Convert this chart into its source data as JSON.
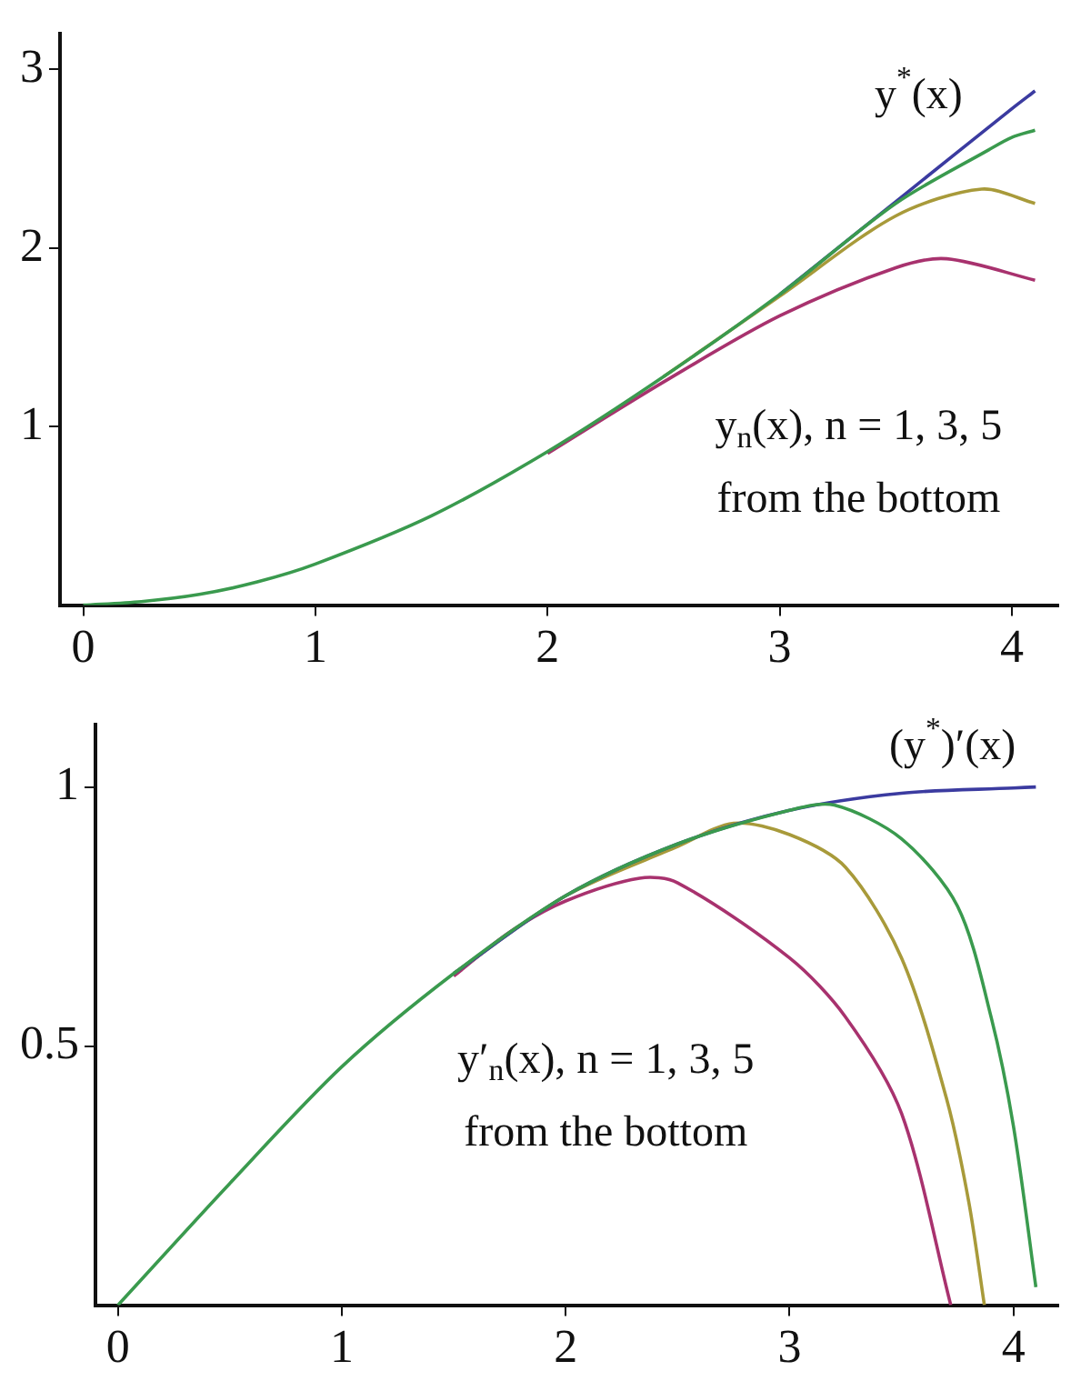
{
  "chart_data": [
    {
      "type": "line",
      "xlim": [
        -0.1,
        4.2
      ],
      "xticks": [
        0,
        1,
        2,
        3,
        4
      ],
      "ylim": [
        0,
        3.2
      ],
      "yticks": [
        1,
        2,
        3
      ],
      "series": [
        {
          "color": "#3a9a4e",
          "x": [
            0,
            0.25,
            0.5,
            0.75,
            1,
            1.5,
            2,
            2.5,
            3,
            3.5,
            3.9,
            4,
            4.1
          ],
          "values": [
            0,
            0.02,
            0.06,
            0.13,
            0.23,
            0.5,
            0.86,
            1.28,
            1.74,
            2.25,
            2.55,
            2.62,
            2.66
          ]
        },
        {
          "color": "#3b3ba0",
          "x": [
            3,
            3.5,
            4,
            4.1
          ],
          "values": [
            1.74,
            2.26,
            2.78,
            2.88
          ]
        },
        {
          "color": "#a89a3a",
          "x": [
            2.5,
            3,
            3.5,
            3.87,
            4.1
          ],
          "values": [
            1.28,
            1.73,
            2.18,
            2.33,
            2.25
          ]
        },
        {
          "color": "#a8326e",
          "x": [
            2,
            2.5,
            3,
            3.5,
            3.72,
            4.1
          ],
          "values": [
            0.85,
            1.25,
            1.62,
            1.89,
            1.94,
            1.82
          ]
        }
      ],
      "annotations": [
        "y$^{*}$(x)",
        "y$_{n}$(x), n = 1, 3, 5\nfrom the bottom"
      ]
    },
    {
      "type": "line",
      "xlim": [
        -0.1,
        4.2
      ],
      "xticks": [
        0,
        1,
        2,
        3,
        4
      ],
      "ylim": [
        0,
        1.12
      ],
      "yticks": [
        0.5,
        1
      ],
      "series": [
        {
          "color": "#3a9a4e",
          "x": [
            0,
            0.5,
            1,
            1.5,
            2,
            2.5,
            3,
            3.2,
            3.5,
            3.75,
            3.9,
            4,
            4.1
          ],
          "values": [
            0,
            0.235,
            0.46,
            0.64,
            0.79,
            0.89,
            0.955,
            0.965,
            0.9,
            0.77,
            0.556,
            0.345,
            0.035
          ]
        },
        {
          "color": "#3b3ba0",
          "x": [
            1.5,
            2,
            2.5,
            3,
            3.5,
            4,
            4.1
          ],
          "values": [
            0.64,
            0.79,
            0.89,
            0.955,
            0.988,
            0.998,
            1.0
          ]
        },
        {
          "color": "#a89a3a",
          "x": [
            1.5,
            2,
            2.5,
            2.75,
            3,
            3.25,
            3.5,
            3.7,
            3.8,
            3.87
          ],
          "values": [
            0.64,
            0.79,
            0.885,
            0.93,
            0.908,
            0.845,
            0.67,
            0.4,
            0.2,
            0
          ]
        },
        {
          "color": "#a8326e",
          "x": [
            1.5,
            1.75,
            2,
            2.33,
            2.5,
            3,
            3.25,
            3.5,
            3.72
          ],
          "values": [
            0.635,
            0.72,
            0.78,
            0.824,
            0.815,
            0.67,
            0.556,
            0.37,
            0
          ]
        }
      ],
      "annotations": [
        "(y$^{*}$)′(x)",
        "y′$_{n}$(x), n = 1, 3, 5\nfrom the bottom"
      ]
    }
  ]
}
